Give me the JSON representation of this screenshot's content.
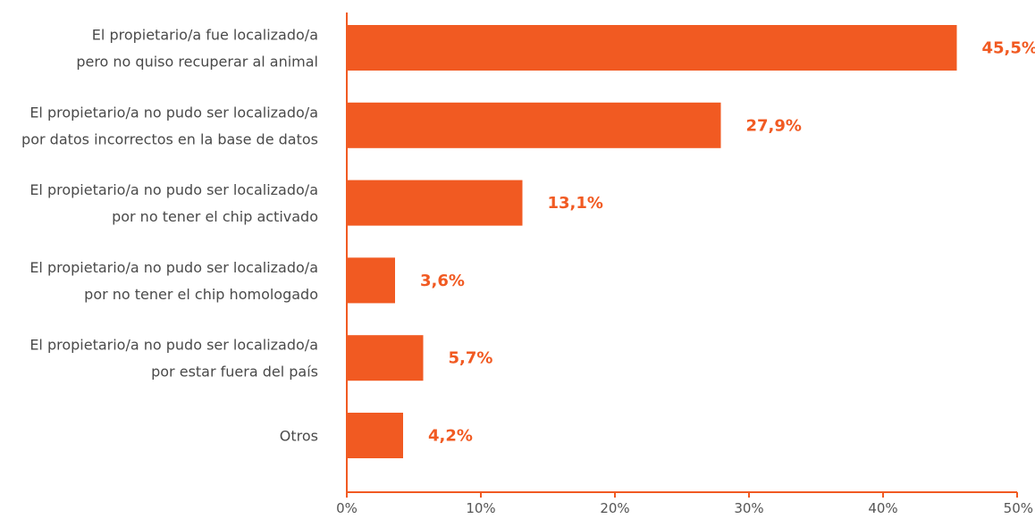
{
  "chart_data": {
    "type": "bar",
    "orientation": "horizontal",
    "categories": [
      [
        "El propietario/a fue localizado/a",
        "pero no quiso recuperar al animal"
      ],
      [
        "El propietario/a no pudo ser localizado/a",
        "por datos incorrectos en la base de datos"
      ],
      [
        "El propietario/a no pudo ser localizado/a",
        "por no tener el chip activado"
      ],
      [
        "El propietario/a no pudo ser localizado/a",
        "por no tener el chip homologado"
      ],
      [
        "El propietario/a no pudo ser localizado/a",
        "por estar fuera del país"
      ],
      [
        "Otros"
      ]
    ],
    "values": [
      45.5,
      27.9,
      13.1,
      3.6,
      5.7,
      4.2
    ],
    "value_labels": [
      "45,5%",
      "27,9%",
      "13,1%",
      "3,6%",
      "5,7%",
      "4,2%"
    ],
    "x_ticks": [
      0,
      10,
      20,
      30,
      40,
      50
    ],
    "x_tick_labels": [
      "0%",
      "10%",
      "20%",
      "30%",
      "40%",
      "50%"
    ],
    "xlim": [
      0,
      50
    ],
    "grid": false,
    "legend": "none",
    "colors": {
      "bar": "#F15A22",
      "axis": "#F15A22",
      "value_label": "#F15A22"
    }
  }
}
